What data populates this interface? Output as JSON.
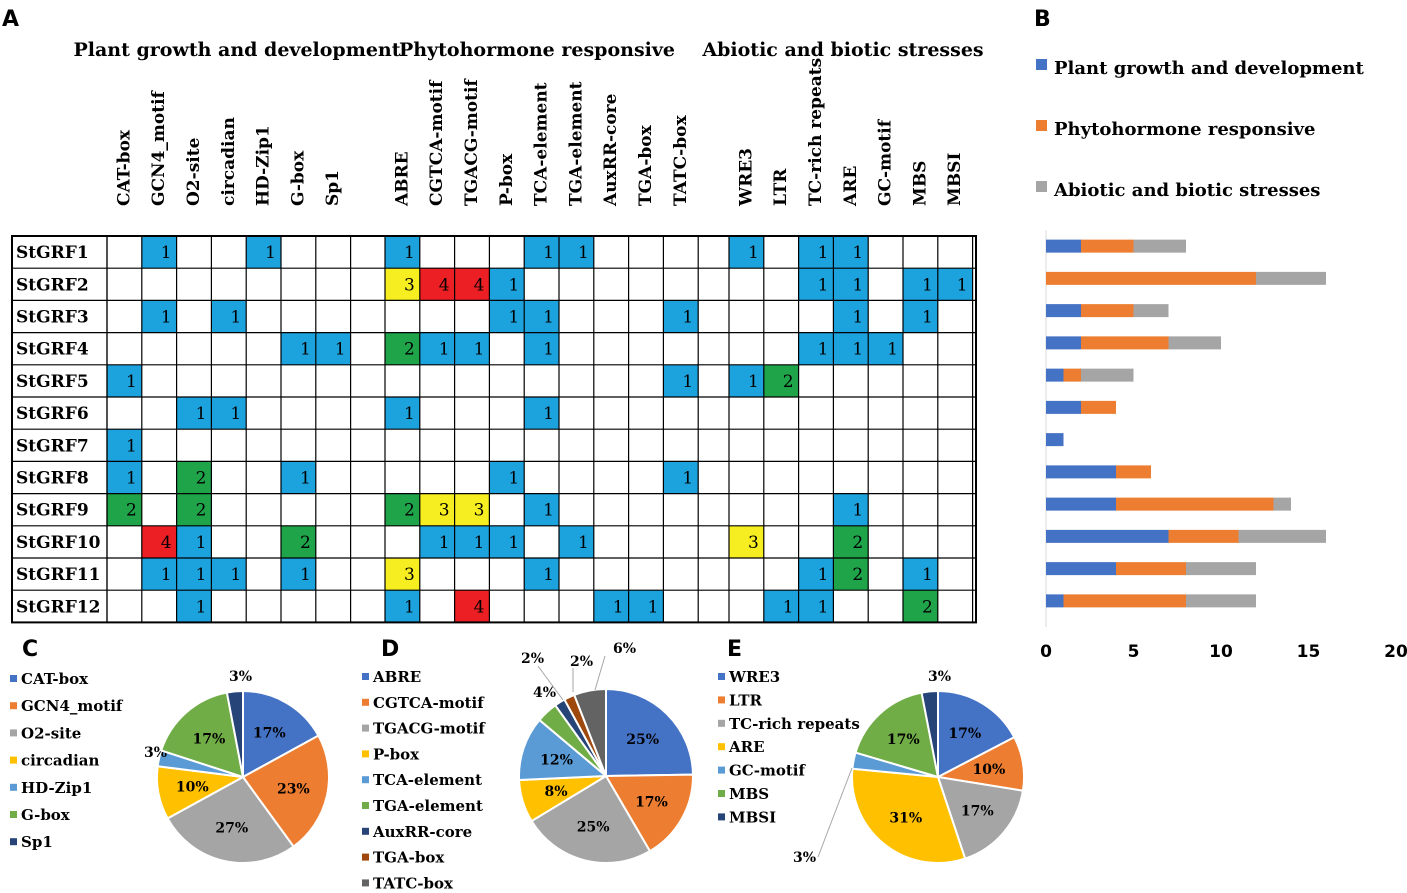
{
  "colors": {
    "c1": "#1ca3de",
    "c2": "#1fa44a",
    "c3": "#f7ee21",
    "c4": "#ec2024",
    "blue": "#4472c4",
    "orange": "#ed7d31",
    "gray": "#a5a5a5",
    "yellow": "#ffc000",
    "lightblue": "#5b9bd5",
    "green": "#70ad47",
    "navy": "#264478",
    "brown": "#9e480e",
    "darkgray": "#636363"
  },
  "chart_data": [
    {
      "type": "heatmap",
      "panel": "A",
      "groups": [
        {
          "name": "Plant growth and development",
          "columns": [
            "CAT-box",
            "GCN4_motif",
            "O2-site",
            "circadian",
            "HD-Zip1",
            "G-box",
            "Sp1"
          ]
        },
        {
          "name": "Phytohormone responsive",
          "columns": [
            "ABRE",
            "CGTCA-motif",
            "TGACG-motif",
            "P-box",
            "TCA-element",
            "TGA-element",
            "AuxRR-core",
            "TGA-box",
            "TATC-box"
          ]
        },
        {
          "name": "Abiotic and biotic stresses",
          "columns": [
            "WRE3",
            "LTR",
            "TC-rich repeats",
            "ARE",
            "GC-motif",
            "MBS",
            "MBSI"
          ]
        }
      ],
      "rows": [
        {
          "name": "StGRF1",
          "values": [
            [
              null,
              1,
              null,
              null,
              1,
              null,
              null
            ],
            [
              1,
              null,
              null,
              null,
              1,
              1,
              null,
              null,
              null
            ],
            [
              1,
              null,
              1,
              1,
              null,
              null,
              null
            ]
          ]
        },
        {
          "name": "StGRF2",
          "values": [
            [
              null,
              null,
              null,
              null,
              null,
              null,
              null
            ],
            [
              3,
              4,
              4,
              1,
              null,
              null,
              null,
              null,
              null
            ],
            [
              null,
              null,
              1,
              1,
              null,
              1,
              1
            ]
          ]
        },
        {
          "name": "StGRF3",
          "values": [
            [
              null,
              1,
              null,
              1,
              null,
              null,
              null
            ],
            [
              null,
              null,
              null,
              1,
              1,
              null,
              null,
              null,
              1
            ],
            [
              null,
              null,
              null,
              1,
              null,
              1,
              null
            ]
          ]
        },
        {
          "name": "StGRF4",
          "values": [
            [
              null,
              null,
              null,
              null,
              null,
              1,
              1
            ],
            [
              2,
              1,
              1,
              null,
              1,
              null,
              null,
              null,
              null
            ],
            [
              null,
              null,
              1,
              1,
              1,
              null,
              null
            ]
          ]
        },
        {
          "name": "StGRF5",
          "values": [
            [
              1,
              null,
              null,
              null,
              null,
              null,
              null
            ],
            [
              null,
              null,
              null,
              null,
              null,
              null,
              null,
              null,
              1
            ],
            [
              1,
              2,
              null,
              null,
              null,
              null,
              null
            ]
          ]
        },
        {
          "name": "StGRF6",
          "values": [
            [
              null,
              null,
              1,
              1,
              null,
              null,
              null
            ],
            [
              1,
              null,
              null,
              null,
              1,
              null,
              null,
              null,
              null
            ],
            [
              null,
              null,
              null,
              null,
              null,
              null,
              null
            ]
          ]
        },
        {
          "name": "StGRF7",
          "values": [
            [
              1,
              null,
              null,
              null,
              null,
              null,
              null
            ],
            [
              null,
              null,
              null,
              null,
              null,
              null,
              null,
              null,
              null
            ],
            [
              null,
              null,
              null,
              null,
              null,
              null,
              null
            ]
          ]
        },
        {
          "name": "StGRF8",
          "values": [
            [
              1,
              null,
              2,
              null,
              null,
              1,
              null
            ],
            [
              null,
              null,
              null,
              1,
              null,
              null,
              null,
              null,
              1
            ],
            [
              null,
              null,
              null,
              null,
              null,
              null,
              null
            ]
          ]
        },
        {
          "name": "StGRF9",
          "values": [
            [
              2,
              null,
              2,
              null,
              null,
              null,
              null
            ],
            [
              2,
              3,
              3,
              null,
              1,
              null,
              null,
              null,
              null
            ],
            [
              null,
              null,
              null,
              1,
              null,
              null,
              null
            ]
          ]
        },
        {
          "name": "StGRF10",
          "values": [
            [
              null,
              4,
              1,
              null,
              null,
              2,
              null
            ],
            [
              null,
              1,
              1,
              1,
              null,
              1,
              null,
              null,
              null
            ],
            [
              3,
              null,
              null,
              2,
              null,
              null,
              null
            ]
          ]
        },
        {
          "name": "StGRF11",
          "values": [
            [
              null,
              1,
              1,
              1,
              null,
              1,
              null
            ],
            [
              3,
              null,
              null,
              null,
              1,
              null,
              null,
              null,
              null
            ],
            [
              null,
              null,
              1,
              2,
              null,
              1,
              null
            ]
          ]
        },
        {
          "name": "StGRF12",
          "values": [
            [
              null,
              null,
              1,
              null,
              null,
              null,
              null
            ],
            [
              1,
              null,
              4,
              null,
              null,
              null,
              1,
              1,
              null
            ],
            [
              null,
              1,
              1,
              null,
              null,
              2,
              null
            ]
          ]
        }
      ]
    },
    {
      "type": "bar",
      "panel": "B",
      "orientation": "horizontal-stacked",
      "categories": [
        "StGRF1",
        "StGRF2",
        "StGRF3",
        "StGRF4",
        "StGRF5",
        "StGRF6",
        "StGRF7",
        "StGRF8",
        "StGRF9",
        "StGRF10",
        "StGRF11",
        "StGRF12"
      ],
      "series": [
        {
          "name": "Plant growth and development",
          "color": "#4472c4",
          "values": [
            2,
            0,
            2,
            2,
            1,
            2,
            1,
            4,
            4,
            7,
            4,
            1
          ]
        },
        {
          "name": "Phytohormone responsive",
          "color": "#ed7d31",
          "values": [
            3,
            12,
            3,
            5,
            1,
            2,
            0,
            2,
            9,
            4,
            4,
            7
          ]
        },
        {
          "name": "Abiotic and biotic stresses",
          "color": "#a5a5a5",
          "values": [
            3,
            4,
            2,
            3,
            3,
            0,
            0,
            0,
            1,
            5,
            4,
            4
          ]
        }
      ],
      "xlim": [
        0,
        20
      ],
      "xticks": [
        "0",
        "5",
        "10",
        "15",
        "20"
      ],
      "legend": "top"
    },
    {
      "type": "pie",
      "panel": "C",
      "slices": [
        {
          "label": "CAT-box",
          "pct": 17,
          "text": "17%",
          "color": "#4472c4"
        },
        {
          "label": "GCN4_motif",
          "pct": 23,
          "text": "23%",
          "color": "#ed7d31"
        },
        {
          "label": "O2-site",
          "pct": 27,
          "text": "27%",
          "color": "#a5a5a5"
        },
        {
          "label": "circadian",
          "pct": 10,
          "text": "10%",
          "color": "#ffc000"
        },
        {
          "label": "HD-Zip1",
          "pct": 3,
          "text": "3%",
          "color": "#5b9bd5"
        },
        {
          "label": "G-box",
          "pct": 17,
          "text": "17%",
          "color": "#70ad47"
        },
        {
          "label": "Sp1",
          "pct": 3,
          "text": "3%",
          "color": "#264478"
        }
      ]
    },
    {
      "type": "pie",
      "panel": "D",
      "slices": [
        {
          "label": "ABRE",
          "pct": 25,
          "text": "25%",
          "color": "#4472c4"
        },
        {
          "label": "CGTCA-motif",
          "pct": 17,
          "text": "17%",
          "color": "#ed7d31"
        },
        {
          "label": "TGACG-motif",
          "pct": 25,
          "text": "25%",
          "color": "#a5a5a5"
        },
        {
          "label": "P-box",
          "pct": 8,
          "text": "8%",
          "color": "#ffc000"
        },
        {
          "label": "TCA-element",
          "pct": 12,
          "text": "12%",
          "color": "#5b9bd5"
        },
        {
          "label": "TGA-element",
          "pct": 4,
          "text": "4%",
          "color": "#70ad47"
        },
        {
          "label": "AuxRR-core",
          "pct": 2,
          "text": "2%",
          "color": "#264478"
        },
        {
          "label": "TGA-box",
          "pct": 2,
          "text": "2%",
          "color": "#9e480e"
        },
        {
          "label": "TATC-box",
          "pct": 6,
          "text": "6%",
          "color": "#636363"
        }
      ]
    },
    {
      "type": "pie",
      "panel": "E",
      "slices": [
        {
          "label": "WRE3",
          "pct": 17,
          "text": "17%",
          "color": "#4472c4"
        },
        {
          "label": "LTR",
          "pct": 10,
          "text": "10%",
          "color": "#ed7d31"
        },
        {
          "label": "TC-rich repeats",
          "pct": 17,
          "text": "17%",
          "color": "#a5a5a5"
        },
        {
          "label": "ARE",
          "pct": 31,
          "text": "31%",
          "color": "#ffc000"
        },
        {
          "label": "GC-motif",
          "pct": 3,
          "text": "3%",
          "color": "#5b9bd5"
        },
        {
          "label": "MBS",
          "pct": 17,
          "text": "17%",
          "color": "#70ad47"
        },
        {
          "label": "MBSI",
          "pct": 3,
          "text": "3%",
          "color": "#264478"
        }
      ]
    }
  ]
}
